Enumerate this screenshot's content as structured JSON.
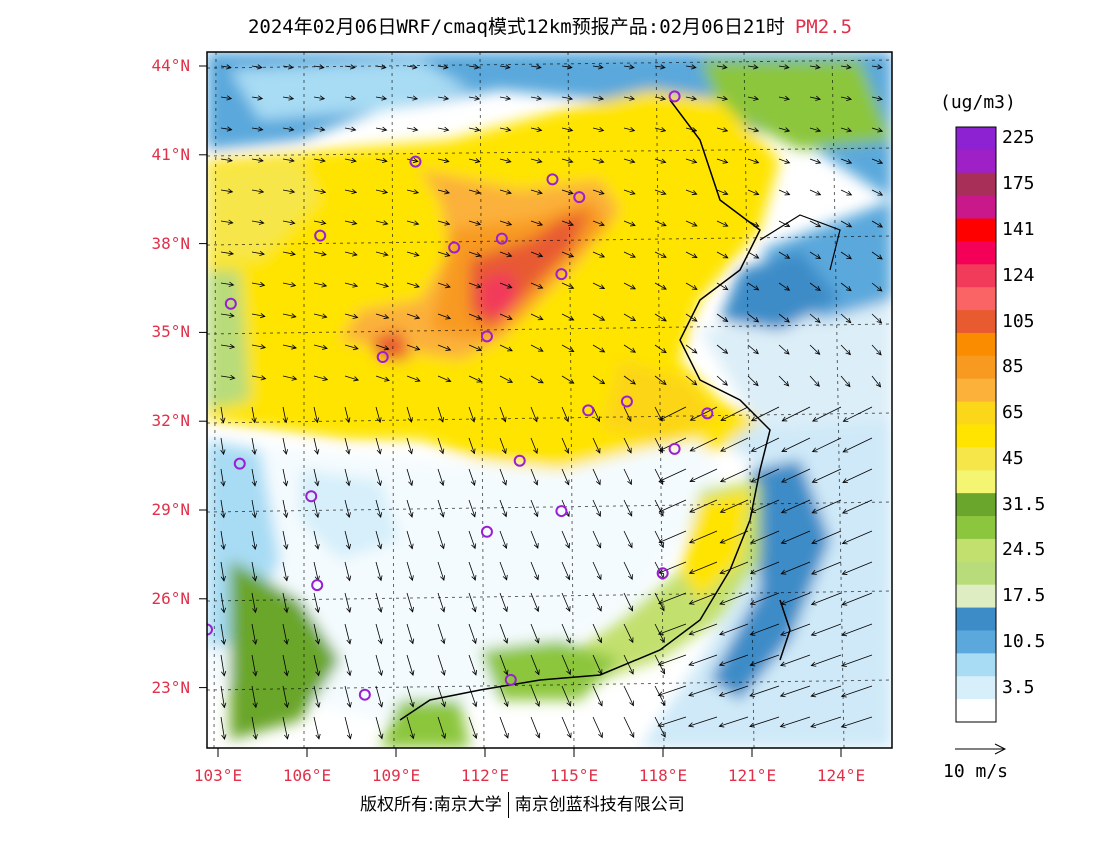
{
  "title": {
    "main": "2024年02月06日WRF/cmaq模式12km预报产品:02月06日21时",
    "pollutant": "PM2.5"
  },
  "map": {
    "lat_labels": [
      "44°N",
      "41°N",
      "38°N",
      "35°N",
      "32°N",
      "29°N",
      "26°N",
      "23°N"
    ],
    "lon_labels": [
      "103°E",
      "106°E",
      "109°E",
      "112°E",
      "115°E",
      "118°E",
      "121°E",
      "124°E"
    ],
    "lon_range": [
      103,
      126
    ],
    "lat_range": [
      21,
      44.5
    ]
  },
  "colorbar": {
    "unit": "(ug/m3)",
    "colors": [
      "#ffffff",
      "#d6effa",
      "#a8dcf4",
      "#5aa8dc",
      "#3d8cc8",
      "#dfeec2",
      "#b8dc7a",
      "#c2e06e",
      "#8cc63e",
      "#6aa62c",
      "#f4f570",
      "#f6e64a",
      "#ffe400",
      "#fcd618",
      "#fbb13a",
      "#f89a20",
      "#fa8c00",
      "#e85a30",
      "#fa6464",
      "#f23a5a",
      "#f40058",
      "#ff0000",
      "#c8188a",
      "#a83058",
      "#a020c8",
      "#8c22d2"
    ],
    "labels": [
      "3.5",
      "10.5",
      "17.5",
      "24.5",
      "31.5",
      "45",
      "65",
      "85",
      "105",
      "124",
      "141",
      "175",
      "225"
    ]
  },
  "wind": {
    "scale_label": "10 m/s"
  },
  "stations": [
    {
      "lon": 118.7,
      "lat": 43.0
    },
    {
      "lon": 110.0,
      "lat": 40.8
    },
    {
      "lon": 114.6,
      "lat": 40.2
    },
    {
      "lon": 115.5,
      "lat": 39.6
    },
    {
      "lon": 106.8,
      "lat": 38.3
    },
    {
      "lon": 111.3,
      "lat": 37.9
    },
    {
      "lon": 112.9,
      "lat": 38.2
    },
    {
      "lon": 114.9,
      "lat": 37.0
    },
    {
      "lon": 103.8,
      "lat": 36.0
    },
    {
      "lon": 108.9,
      "lat": 34.2
    },
    {
      "lon": 112.4,
      "lat": 34.9
    },
    {
      "lon": 115.8,
      "lat": 32.4
    },
    {
      "lon": 117.1,
      "lat": 32.7
    },
    {
      "lon": 119.8,
      "lat": 32.3
    },
    {
      "lon": 118.7,
      "lat": 31.1
    },
    {
      "lon": 104.1,
      "lat": 30.6
    },
    {
      "lon": 113.5,
      "lat": 30.7
    },
    {
      "lon": 106.5,
      "lat": 29.5
    },
    {
      "lon": 114.9,
      "lat": 29.0
    },
    {
      "lon": 112.4,
      "lat": 28.3
    },
    {
      "lon": 106.7,
      "lat": 26.5
    },
    {
      "lon": 118.3,
      "lat": 26.9
    },
    {
      "lon": 103.0,
      "lat": 25.0
    },
    {
      "lon": 113.2,
      "lat": 23.3
    },
    {
      "lon": 108.3,
      "lat": 22.8
    }
  ],
  "footer": {
    "copyright_left": "版权所有:南京大学",
    "copyright_right": "南京创蓝科技有限公司"
  }
}
